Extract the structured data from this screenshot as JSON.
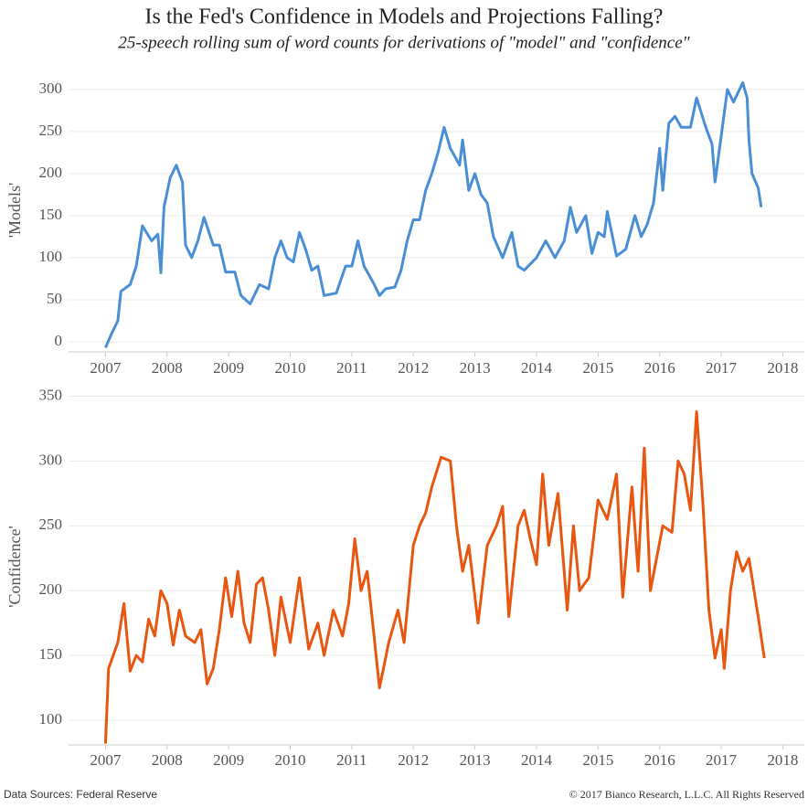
{
  "header": {
    "title": "Is the Fed's Confidence in Models and Projections Falling?",
    "subtitle": "25-speech rolling sum of word counts for derivations of \"model\" and \"confidence\""
  },
  "footer": {
    "source": "Data Sources: Federal Reserve",
    "copyright": "© 2017 Bianco Research, L.L.C. All Rights Reserved"
  },
  "chart_data": [
    {
      "type": "line",
      "y_label": "'Models'",
      "grid": true,
      "xlim": [
        2006.4,
        2018.35
      ],
      "xticks": [
        2007,
        2008,
        2009,
        2010,
        2011,
        2012,
        2013,
        2014,
        2015,
        2016,
        2017,
        2018
      ],
      "ylim": [
        -12,
        314
      ],
      "yticks": [
        0,
        50,
        100,
        150,
        200,
        250,
        300
      ],
      "x": [
        2007.0,
        2007.1,
        2007.2,
        2007.25,
        2007.4,
        2007.5,
        2007.6,
        2007.75,
        2007.85,
        2007.9,
        2007.95,
        2008.05,
        2008.15,
        2008.25,
        2008.3,
        2008.4,
        2008.5,
        2008.6,
        2008.75,
        2008.85,
        2008.95,
        2009.1,
        2009.2,
        2009.35,
        2009.5,
        2009.65,
        2009.75,
        2009.85,
        2009.95,
        2010.05,
        2010.15,
        2010.25,
        2010.35,
        2010.45,
        2010.55,
        2010.75,
        2010.9,
        2011.0,
        2011.1,
        2011.2,
        2011.35,
        2011.45,
        2011.55,
        2011.7,
        2011.8,
        2011.9,
        2012.0,
        2012.1,
        2012.2,
        2012.3,
        2012.4,
        2012.5,
        2012.6,
        2012.75,
        2012.8,
        2012.9,
        2013.0,
        2013.1,
        2013.2,
        2013.3,
        2013.45,
        2013.6,
        2013.7,
        2013.8,
        2014.0,
        2014.15,
        2014.3,
        2014.45,
        2014.55,
        2014.65,
        2014.8,
        2014.9,
        2015.0,
        2015.1,
        2015.15,
        2015.3,
        2015.45,
        2015.6,
        2015.7,
        2015.8,
        2015.9,
        2016.0,
        2016.05,
        2016.15,
        2016.25,
        2016.35,
        2016.5,
        2016.6,
        2016.75,
        2016.85,
        2016.9,
        2017.0,
        2017.1,
        2017.2,
        2017.35,
        2017.42,
        2017.45,
        2017.5,
        2017.6,
        2017.65
      ],
      "series": [
        {
          "name": "Models",
          "color": "#4a8fd6",
          "values": [
            -7,
            10,
            25,
            60,
            68,
            90,
            138,
            120,
            128,
            82,
            160,
            195,
            210,
            190,
            115,
            100,
            120,
            148,
            115,
            115,
            83,
            83,
            55,
            45,
            68,
            63,
            100,
            120,
            100,
            95,
            130,
            110,
            85,
            90,
            55,
            58,
            90,
            90,
            120,
            90,
            70,
            55,
            63,
            65,
            85,
            120,
            145,
            145,
            180,
            200,
            225,
            255,
            230,
            210,
            240,
            180,
            200,
            175,
            165,
            125,
            100,
            130,
            90,
            85,
            100,
            120,
            100,
            120,
            160,
            130,
            150,
            105,
            130,
            125,
            155,
            102,
            110,
            150,
            125,
            140,
            165,
            230,
            180,
            260,
            268,
            255,
            255,
            290,
            255,
            235,
            190,
            245,
            300,
            285,
            308,
            290,
            240,
            200,
            183,
            160
          ]
        }
      ]
    },
    {
      "type": "line",
      "y_label": "'Confidence'",
      "grid": true,
      "xlim": [
        2006.4,
        2018.35
      ],
      "xticks": [
        2007,
        2008,
        2009,
        2010,
        2011,
        2012,
        2013,
        2014,
        2015,
        2016,
        2017,
        2018
      ],
      "ylim": [
        81,
        356
      ],
      "yticks": [
        100,
        150,
        200,
        250,
        300,
        350
      ],
      "x": [
        2007.0,
        2007.05,
        2007.2,
        2007.3,
        2007.4,
        2007.5,
        2007.6,
        2007.7,
        2007.8,
        2007.9,
        2008.0,
        2008.1,
        2008.2,
        2008.3,
        2008.45,
        2008.55,
        2008.65,
        2008.75,
        2008.85,
        2008.95,
        2009.05,
        2009.15,
        2009.25,
        2009.35,
        2009.45,
        2009.55,
        2009.65,
        2009.75,
        2009.85,
        2010.0,
        2010.15,
        2010.3,
        2010.45,
        2010.55,
        2010.7,
        2010.85,
        2010.95,
        2011.05,
        2011.15,
        2011.25,
        2011.35,
        2011.45,
        2011.6,
        2011.75,
        2011.85,
        2012.0,
        2012.1,
        2012.2,
        2012.3,
        2012.45,
        2012.6,
        2012.7,
        2012.8,
        2012.9,
        2013.05,
        2013.2,
        2013.35,
        2013.45,
        2013.55,
        2013.7,
        2013.8,
        2013.9,
        2014.0,
        2014.1,
        2014.2,
        2014.35,
        2014.5,
        2014.6,
        2014.7,
        2014.85,
        2015.0,
        2015.15,
        2015.3,
        2015.4,
        2015.55,
        2015.65,
        2015.75,
        2015.85,
        2016.05,
        2016.2,
        2016.3,
        2016.4,
        2016.5,
        2016.6,
        2016.7,
        2016.8,
        2016.9,
        2017.0,
        2017.05,
        2017.15,
        2017.25,
        2017.35,
        2017.45,
        2017.55,
        2017.6,
        2017.7
      ],
      "series": [
        {
          "name": "Confidence",
          "color": "#e8560f",
          "values": [
            82,
            140,
            160,
            190,
            138,
            150,
            145,
            178,
            165,
            200,
            190,
            158,
            185,
            165,
            160,
            170,
            128,
            140,
            170,
            210,
            180,
            215,
            175,
            160,
            205,
            210,
            185,
            150,
            195,
            160,
            210,
            155,
            175,
            150,
            185,
            165,
            190,
            240,
            200,
            215,
            170,
            125,
            160,
            185,
            160,
            235,
            250,
            260,
            280,
            303,
            300,
            250,
            215,
            235,
            175,
            235,
            250,
            265,
            180,
            250,
            262,
            240,
            220,
            290,
            235,
            275,
            185,
            250,
            200,
            210,
            270,
            255,
            290,
            195,
            280,
            215,
            310,
            200,
            250,
            245,
            300,
            290,
            262,
            338,
            270,
            185,
            148,
            170,
            140,
            200,
            230,
            215,
            225,
            195,
            180,
            148
          ]
        }
      ]
    }
  ]
}
